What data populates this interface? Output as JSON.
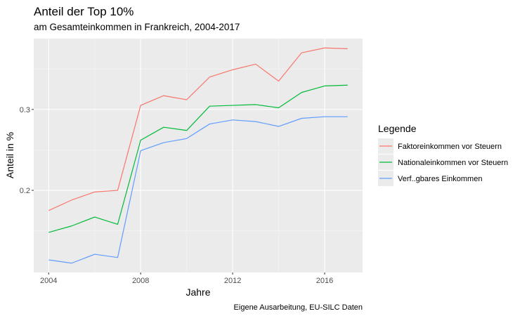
{
  "chart_data": {
    "type": "line",
    "title": "Anteil der Top 10%",
    "subtitle": "am Gesamteinkommen in Frankreich, 2004-2017",
    "xlabel": "Jahre",
    "ylabel": "Anteil in %",
    "caption": "Eigene Ausarbeitung, EU-SILC Daten",
    "x": [
      2004,
      2005,
      2006,
      2007,
      2008,
      2009,
      2010,
      2011,
      2012,
      2013,
      2014,
      2015,
      2016,
      2017
    ],
    "xlim": [
      2003.35,
      2017.65
    ],
    "ylim": [
      0.0985,
      0.3875
    ],
    "x_ticks": [
      2004,
      2008,
      2012,
      2016
    ],
    "x_tick_labels": [
      "2004",
      "2008",
      "2012",
      "2016"
    ],
    "y_ticks": [
      0.2,
      0.3
    ],
    "y_tick_labels": [
      "0.2",
      "0.3"
    ],
    "grid": true,
    "legend": {
      "title": "Legende",
      "position": "right"
    },
    "series": [
      {
        "name": "Faktoreinkommen vor Steuern",
        "color": "#F8766D",
        "values": [
          0.175,
          0.188,
          0.198,
          0.2,
          0.305,
          0.317,
          0.312,
          0.34,
          0.349,
          0.356,
          0.335,
          0.37,
          0.376,
          0.375
        ]
      },
      {
        "name": "Nationaleinkommen vor Steuern",
        "color": "#00BA38",
        "values": [
          0.148,
          0.156,
          0.167,
          0.158,
          0.262,
          0.278,
          0.274,
          0.304,
          0.305,
          0.306,
          0.302,
          0.321,
          0.329,
          0.33
        ]
      },
      {
        "name": "Verf..gbares Einkommen",
        "color": "#619CFF",
        "values": [
          0.114,
          0.11,
          0.121,
          0.117,
          0.249,
          0.259,
          0.264,
          0.282,
          0.287,
          0.285,
          0.279,
          0.289,
          0.291,
          0.291
        ]
      }
    ]
  }
}
